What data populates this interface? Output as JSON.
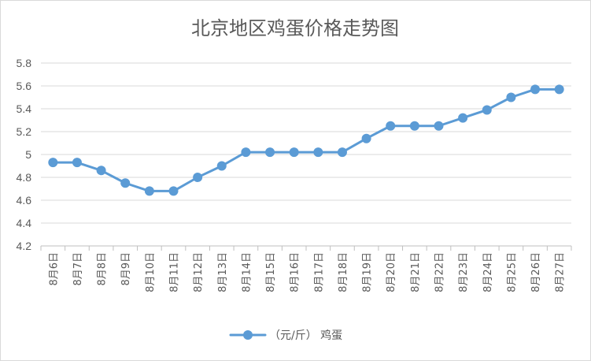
{
  "chart_data": {
    "type": "line",
    "title": "北京地区鸡蛋价格走势图",
    "categories": [
      "8月6日",
      "8月7日",
      "8月8日",
      "8月9日",
      "8月10日",
      "8月11日",
      "8月12日",
      "8月13日",
      "8月14日",
      "8月15日",
      "8月16日",
      "8月17日",
      "8月18日",
      "8月19日",
      "8月20日",
      "8月21日",
      "8月22日",
      "8月23日",
      "8月24日",
      "8月25日",
      "8月26日",
      "8月27日"
    ],
    "series": [
      {
        "name": "（元/斤） 鸡蛋",
        "values": [
          4.93,
          4.93,
          4.86,
          4.75,
          4.68,
          4.68,
          4.8,
          4.9,
          5.02,
          5.02,
          5.02,
          5.02,
          5.02,
          5.14,
          5.25,
          5.25,
          5.25,
          5.32,
          5.39,
          5.5,
          5.57,
          5.57
        ],
        "color": "#5b9bd5"
      }
    ],
    "ylim": [
      4.2,
      5.8
    ],
    "yticks": [
      "4.2",
      "4.4",
      "4.6",
      "4.8",
      "5",
      "5.2",
      "5.4",
      "5.6",
      "5.8"
    ],
    "ytick_values": [
      4.2,
      4.4,
      4.6,
      4.8,
      5.0,
      5.2,
      5.4,
      5.6,
      5.8
    ],
    "grid": true,
    "legend_position": "bottom"
  }
}
